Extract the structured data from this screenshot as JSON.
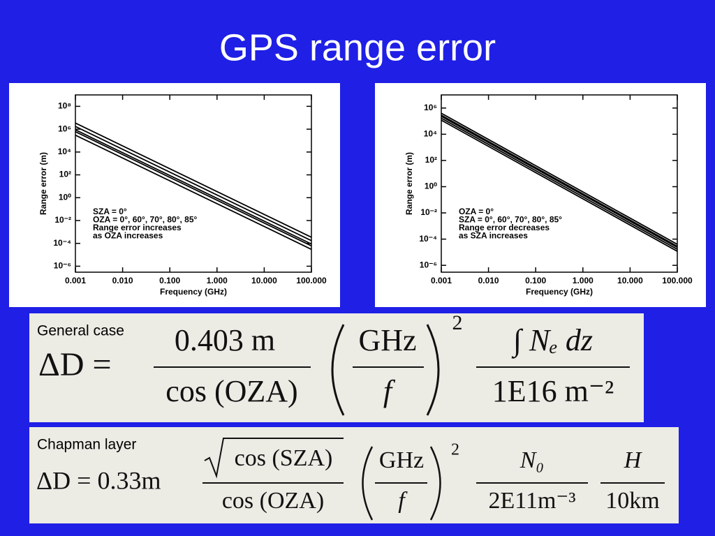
{
  "title": "GPS range error",
  "chart_data": [
    {
      "type": "line",
      "x_label": "Frequency (GHz)",
      "y_label": "Range error (m)",
      "log_x": true,
      "log_y": true,
      "x": [
        0.001,
        100
      ],
      "series": [
        {
          "color": "#000000",
          "values": [
            300000,
            3e-05
          ]
        },
        {
          "color": "#000000",
          "values": [
            600000,
            6e-05
          ]
        },
        {
          "color": "#000000",
          "values": [
            880000,
            8.8e-05
          ]
        },
        {
          "color": "#000000",
          "values": [
            1730000,
            0.000173
          ]
        },
        {
          "color": "#000000",
          "values": [
            3440000,
            0.000344
          ]
        }
      ],
      "xlim": [
        0.001,
        100
      ],
      "xticks": [
        {
          "value": 0.001,
          "label": "0.001"
        },
        {
          "value": 0.01,
          "label": "0.010"
        },
        {
          "value": 0.1,
          "label": "0.100"
        },
        {
          "value": 1,
          "label": "1.000"
        },
        {
          "value": 10,
          "label": "10.000"
        },
        {
          "value": 100,
          "label": "100.000"
        }
      ],
      "ylim": [
        3e-07,
        1000000000.0
      ],
      "yticks": [
        {
          "value": 100000000.0,
          "label": "10⁸"
        },
        {
          "value": 1000000.0,
          "label": "10⁶"
        },
        {
          "value": 10000.0,
          "label": "10⁴"
        },
        {
          "value": 100,
          "label": "10²"
        },
        {
          "value": 1,
          "label": "10⁰"
        },
        {
          "value": 0.01,
          "label": "10⁻²"
        },
        {
          "value": 0.0001,
          "label": "10⁻⁴"
        },
        {
          "value": 1e-06,
          "label": "10⁻⁶"
        }
      ],
      "annotations": [
        "SZA = 0°",
        "OZA = 0°, 60°, 70°, 80°, 85°",
        "Range error increases",
        "as OZA increases"
      ]
    },
    {
      "type": "line",
      "x_label": "Frequency (GHz)",
      "y_label": "Range error (m)",
      "log_x": true,
      "log_y": true,
      "x": [
        0.001,
        100
      ],
      "series": [
        {
          "color": "#000000",
          "values": [
            400000,
            4e-05
          ]
        },
        {
          "color": "#000000",
          "values": [
            283000,
            2.83e-05
          ]
        },
        {
          "color": "#000000",
          "values": [
            234000,
            2.34e-05
          ]
        },
        {
          "color": "#000000",
          "values": [
            167000,
            1.67e-05
          ]
        },
        {
          "color": "#000000",
          "values": [
            118000,
            1.18e-05
          ]
        }
      ],
      "xlim": [
        0.001,
        100
      ],
      "xticks": [
        {
          "value": 0.001,
          "label": "0.001"
        },
        {
          "value": 0.01,
          "label": "0.010"
        },
        {
          "value": 0.1,
          "label": "0.100"
        },
        {
          "value": 1,
          "label": "1.000"
        },
        {
          "value": 10,
          "label": "10.000"
        },
        {
          "value": 100,
          "label": "100.000"
        }
      ],
      "ylim": [
        3e-07,
        10000000.0
      ],
      "yticks": [
        {
          "value": 1000000.0,
          "label": "10⁶"
        },
        {
          "value": 10000.0,
          "label": "10⁴"
        },
        {
          "value": 100,
          "label": "10²"
        },
        {
          "value": 1,
          "label": "10⁰"
        },
        {
          "value": 0.01,
          "label": "10⁻²"
        },
        {
          "value": 0.0001,
          "label": "10⁻⁴"
        },
        {
          "value": 1e-06,
          "label": "10⁻⁶"
        }
      ],
      "annotations": [
        "OZA = 0°",
        "SZA = 0°, 60°, 70°, 80°, 85°",
        "Range error decreases",
        "as SZA increases"
      ]
    }
  ],
  "formulas": [
    {
      "label": "General case",
      "lhs": "ΔD =",
      "num1": "0.403 m",
      "den1": "cos (OZA)",
      "num2": "GHz",
      "den2": "f",
      "power": "2",
      "num3": "∫ Nₑ dz",
      "den3": "1E16 m⁻²"
    },
    {
      "label": "Chapman layer",
      "lhs": "ΔD = 0.33m",
      "num1": "cos (SZA)",
      "den1": "cos (OZA)",
      "num2": "GHz",
      "den2": "f",
      "power": "2",
      "num3": "N₀",
      "den3": "2E11m⁻³",
      "num4": "H",
      "den4": "10km"
    }
  ]
}
